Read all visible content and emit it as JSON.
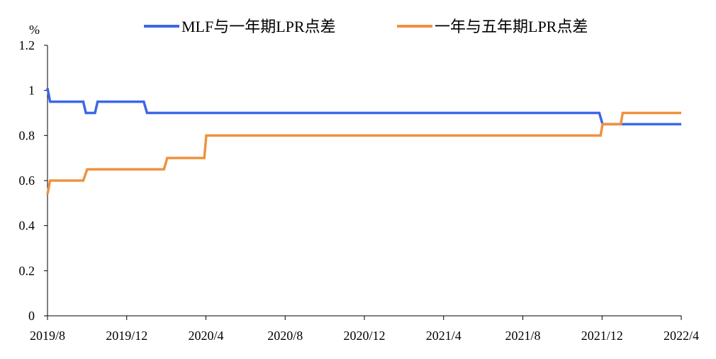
{
  "chart_data": {
    "type": "line",
    "ylabel": "%",
    "ylim": [
      0,
      1.2
    ],
    "yticks": [
      "0",
      "0.2",
      "0.4",
      "0.6",
      "0.8",
      "1",
      "1.2"
    ],
    "xticks": [
      "2019/8",
      "2019/12",
      "2020/4",
      "2020/8",
      "2020/12",
      "2021/4",
      "2021/8",
      "2021/12",
      "2022/4"
    ],
    "x_range": [
      "2019-08-20",
      "2022-04-20"
    ],
    "grid": false,
    "legend_position": "top",
    "series": [
      {
        "name": "MLF与一年期LPR点差",
        "color": "#3D67E6",
        "points": [
          [
            "2019-08-20",
            1.0
          ],
          [
            "2019-08-20",
            1.01
          ],
          [
            "2019-08-24",
            0.95
          ],
          [
            "2019-10-14",
            0.95
          ],
          [
            "2019-10-18",
            0.9
          ],
          [
            "2019-11-01",
            0.9
          ],
          [
            "2019-11-05",
            0.95
          ],
          [
            "2020-01-15",
            0.95
          ],
          [
            "2020-01-20",
            0.9
          ],
          [
            "2021-12-15",
            0.9
          ],
          [
            "2021-12-20",
            0.85
          ],
          [
            "2022-04-20",
            0.85
          ]
        ]
      },
      {
        "name": "一年与五年期LPR点差",
        "color": "#F0923F",
        "points": [
          [
            "2019-08-20",
            0.54
          ],
          [
            "2019-08-24",
            0.6
          ],
          [
            "2019-10-14",
            0.6
          ],
          [
            "2019-10-20",
            0.65
          ],
          [
            "2020-02-15",
            0.65
          ],
          [
            "2020-02-20",
            0.7
          ],
          [
            "2020-04-17",
            0.7
          ],
          [
            "2020-04-20",
            0.8
          ],
          [
            "2021-12-17",
            0.8
          ],
          [
            "2021-12-20",
            0.85
          ],
          [
            "2022-01-17",
            0.85
          ],
          [
            "2022-01-20",
            0.9
          ],
          [
            "2022-04-20",
            0.9
          ]
        ]
      }
    ]
  }
}
